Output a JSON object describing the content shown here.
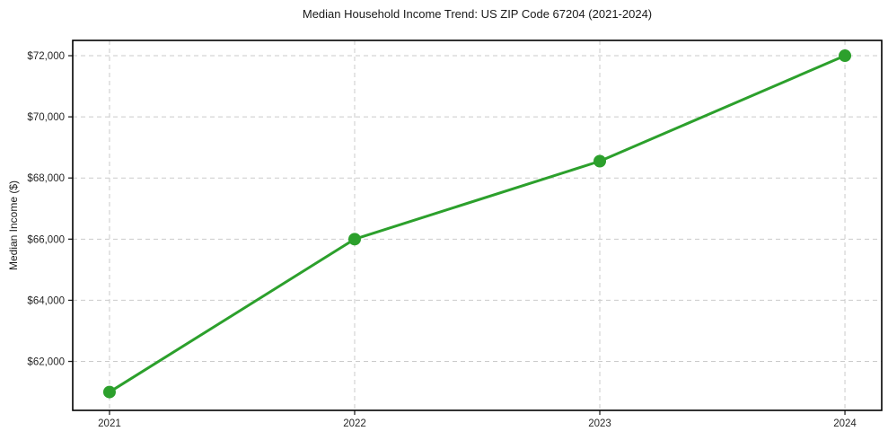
{
  "chart_data": {
    "type": "line",
    "title": "Median Household Income Trend: US ZIP Code 67204 (2021-2024)",
    "xlabel": "",
    "ylabel": "Median Income ($)",
    "x": [
      2021,
      2022,
      2023,
      2024
    ],
    "values": [
      61000,
      66000,
      68550,
      72000
    ],
    "series_name": "Median Household Income",
    "xticks": [
      2021,
      2022,
      2023,
      2024
    ],
    "xtick_labels": [
      "2021",
      "2022",
      "2023",
      "2024"
    ],
    "yticks": [
      62000,
      64000,
      66000,
      68000,
      70000,
      72000
    ],
    "ytick_labels": [
      "$62,000",
      "$64,000",
      "$66,000",
      "$68,000",
      "$70,000",
      "$72,000"
    ],
    "xlim": [
      2020.85,
      2024.15
    ],
    "ylim": [
      60400,
      72500
    ],
    "grid": true,
    "legend": false,
    "line_color": "#2ca02c",
    "marker": "circle",
    "marker_color": "#2ca02c",
    "grid_color": "#cbcbcb",
    "frame_color": "#000000",
    "text_color": "#262626",
    "background_color": "#ffffff"
  }
}
